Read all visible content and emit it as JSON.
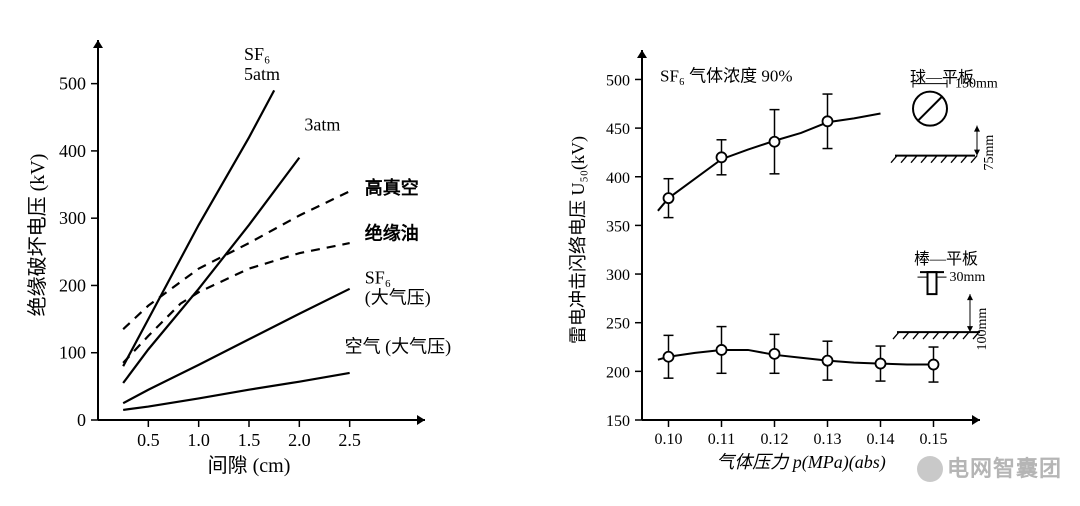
{
  "background_color": "#ffffff",
  "axis_color": "#000000",
  "line_color": "#000000",
  "dash_color": "#000000",
  "tick_font_size": 18,
  "label_font_size": 20,
  "series_label_font_size": 18,
  "left_chart": {
    "type": "line",
    "xlabel": "间隙 (cm)",
    "ylabel": "绝缘破坏电压 (kV)",
    "xlim": [
      0,
      3.0
    ],
    "ylim": [
      0,
      550
    ],
    "xticks": [
      0.5,
      1.0,
      1.5,
      2.0,
      2.5
    ],
    "yticks": [
      0,
      100,
      200,
      300,
      400,
      500
    ],
    "xtick_labels": [
      "0.5",
      "1.0",
      "1.5",
      "2.0",
      "2.5"
    ],
    "ytick_labels": [
      "0",
      "100",
      "200",
      "300",
      "400",
      "500"
    ],
    "axis_line_width": 2,
    "series_line_width": 2.2,
    "series": [
      {
        "name": "sf6-5atm",
        "label_lines": [
          "SF₆",
          "5atm"
        ],
        "label_at": [
          1.45,
          535
        ],
        "dashed": false,
        "points": [
          [
            0.25,
            80
          ],
          [
            0.5,
            150
          ],
          [
            1.0,
            290
          ],
          [
            1.5,
            420
          ],
          [
            1.75,
            490
          ]
        ]
      },
      {
        "name": "sf6-3atm",
        "label_lines": [
          "3atm"
        ],
        "label_at": [
          2.05,
          430
        ],
        "dashed": false,
        "points": [
          [
            0.25,
            55
          ],
          [
            0.5,
            105
          ],
          [
            1.0,
            195
          ],
          [
            1.5,
            290
          ],
          [
            2.0,
            390
          ]
        ]
      },
      {
        "name": "high-vacuum",
        "label_lines": [
          "高真空"
        ],
        "label_at": [
          2.65,
          336
        ],
        "dashed": true,
        "points": [
          [
            0.25,
            135
          ],
          [
            0.5,
            170
          ],
          [
            1.0,
            225
          ],
          [
            1.5,
            263
          ],
          [
            2.0,
            304
          ],
          [
            2.5,
            340
          ]
        ]
      },
      {
        "name": "insulating-oil",
        "label_lines": [
          "绝缘油"
        ],
        "label_at": [
          2.65,
          268
        ],
        "dashed": true,
        "points": [
          [
            0.25,
            85
          ],
          [
            0.5,
            125
          ],
          [
            0.82,
            173
          ],
          [
            1.0,
            190
          ],
          [
            1.5,
            225
          ],
          [
            2.0,
            248
          ],
          [
            2.5,
            263
          ]
        ]
      },
      {
        "name": "sf6-1atm",
        "label_lines": [
          "SF₆",
          "(大气压)"
        ],
        "label_at": [
          2.65,
          203
        ],
        "dashed": false,
        "points": [
          [
            0.25,
            25
          ],
          [
            0.5,
            45
          ],
          [
            1.0,
            82
          ],
          [
            1.5,
            120
          ],
          [
            2.0,
            158
          ],
          [
            2.5,
            195
          ]
        ]
      },
      {
        "name": "air-1atm",
        "label_lines": [
          "空气 (大气压)"
        ],
        "label_at": [
          2.45,
          100
        ],
        "dashed": false,
        "points": [
          [
            0.25,
            15
          ],
          [
            0.5,
            20
          ],
          [
            1.0,
            32
          ],
          [
            1.5,
            45
          ],
          [
            2.0,
            57
          ],
          [
            2.5,
            70
          ]
        ]
      }
    ]
  },
  "right_chart": {
    "type": "scatter-line",
    "title_text": "SF₆ 气体浓度 90%",
    "xlabel": "气体压力 p(MPa)(abs)",
    "ylabel": "雷电冲击闪络电压 U₅₀(kV)",
    "xlim": [
      0.095,
      0.155
    ],
    "ylim": [
      150,
      520
    ],
    "xticks": [
      0.1,
      0.11,
      0.12,
      0.13,
      0.14,
      0.15
    ],
    "yticks": [
      150,
      200,
      250,
      300,
      350,
      400,
      450,
      500
    ],
    "xtick_labels": [
      "0.10",
      "0.11",
      "0.12",
      "0.13",
      "0.14",
      "0.15"
    ],
    "ytick_labels": [
      "150",
      "200",
      "250",
      "300",
      "350",
      "400",
      "450",
      "500"
    ],
    "axis_line_width": 2,
    "marker_radius": 5,
    "marker_fill": "#ffffff",
    "marker_stroke": "#000000",
    "errbar_half": 25,
    "series": [
      {
        "name": "sphere-plate",
        "curve": [
          [
            0.098,
            365
          ],
          [
            0.1,
            378
          ],
          [
            0.105,
            398
          ],
          [
            0.11,
            418
          ],
          [
            0.115,
            428
          ],
          [
            0.12,
            437
          ],
          [
            0.125,
            445
          ],
          [
            0.13,
            456
          ],
          [
            0.135,
            460
          ],
          [
            0.14,
            465
          ]
        ],
        "points": [
          [
            0.1,
            378
          ],
          [
            0.11,
            420
          ],
          [
            0.12,
            436
          ],
          [
            0.13,
            457
          ]
        ],
        "errbars": [
          [
            0.1,
            378,
            20
          ],
          [
            0.11,
            420,
            18
          ],
          [
            0.12,
            436,
            33
          ],
          [
            0.13,
            457,
            28
          ]
        ]
      },
      {
        "name": "rod-plate",
        "curve": [
          [
            0.098,
            212
          ],
          [
            0.1,
            215
          ],
          [
            0.105,
            219
          ],
          [
            0.11,
            222
          ],
          [
            0.115,
            222
          ],
          [
            0.12,
            217
          ],
          [
            0.125,
            214
          ],
          [
            0.13,
            211
          ],
          [
            0.135,
            209
          ],
          [
            0.14,
            208
          ],
          [
            0.145,
            207
          ],
          [
            0.15,
            207
          ]
        ],
        "points": [
          [
            0.1,
            215
          ],
          [
            0.11,
            222
          ],
          [
            0.12,
            218
          ],
          [
            0.13,
            211
          ],
          [
            0.14,
            208
          ],
          [
            0.15,
            207
          ]
        ],
        "errbars": [
          [
            0.1,
            215,
            22
          ],
          [
            0.11,
            222,
            24
          ],
          [
            0.12,
            218,
            20
          ],
          [
            0.13,
            211,
            20
          ],
          [
            0.14,
            208,
            18
          ],
          [
            0.15,
            207,
            18
          ]
        ]
      }
    ],
    "sphere_diagram": {
      "label": "球—平板",
      "d_label": "150mm",
      "gap_label": "75mm"
    },
    "rod_diagram": {
      "label": "棒—平板",
      "w_label": "30mm",
      "gap_label": "100mm"
    }
  },
  "watermark": "电网智囊团"
}
